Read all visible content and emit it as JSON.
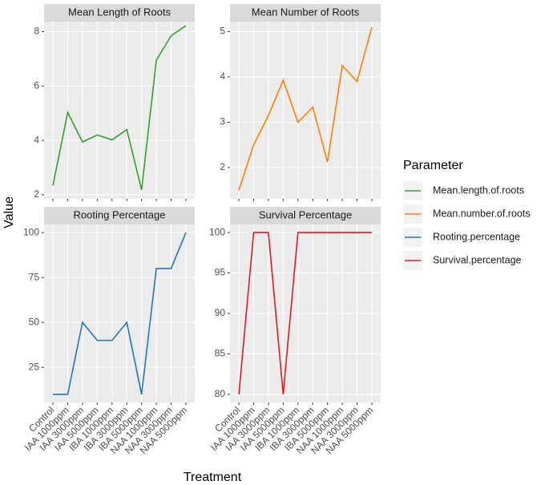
{
  "chart_data": {
    "type": "line",
    "x_label": "Treatment",
    "y_label": "Value",
    "legend_title": "Parameter",
    "categories": [
      "Control",
      "IAA 1000ppm",
      "IAA 3000ppm",
      "IAA 5000ppm",
      "IBA 1000ppm",
      "IBA 3000ppm",
      "IBA 5000ppm",
      "NAA 1000ppm",
      "NAA 3000ppm",
      "NAA 5000ppm"
    ],
    "panels": [
      {
        "title": "Mean Length of Roots",
        "ylim": [
          1.85,
          8.37
        ],
        "yticks": [
          2,
          4,
          6,
          8
        ],
        "series": [
          {
            "name": "Mean.length.of.roots",
            "color": "#33a02c",
            "values": [
              2.34,
              5.03,
              3.94,
              4.2,
              4.02,
              4.4,
              2.18,
              6.95,
              7.85,
              8.22
            ]
          }
        ]
      },
      {
        "title": "Mean Number of Roots",
        "ylim": [
          1.31,
          5.22
        ],
        "yticks": [
          2,
          3,
          4,
          5
        ],
        "series": [
          {
            "name": "Mean.number.of.roots",
            "color": "#ff7f00",
            "values": [
              1.5,
              2.5,
              3.15,
              3.93,
              3.0,
              3.33,
              2.12,
              4.25,
              3.9,
              5.1
            ]
          }
        ]
      },
      {
        "title": "Rooting Percentage",
        "ylim": [
          5.5,
          104.5
        ],
        "yticks": [
          25,
          50,
          75,
          100
        ],
        "series": [
          {
            "name": "Rooting.percentage",
            "color": "#1f78b4",
            "values": [
              10,
              10,
              50,
              40,
              40,
              50,
              10,
              80,
              80,
              100
            ]
          }
        ]
      },
      {
        "title": "Survival Percentage",
        "ylim": [
          79,
          101
        ],
        "yticks": [
          80,
          85,
          90,
          95,
          100
        ],
        "series": [
          {
            "name": "Survival.percentage",
            "color": "#e31a1c",
            "values": [
              80,
              100,
              100,
              80,
              100,
              100,
              100,
              100,
              100,
              100
            ]
          }
        ]
      }
    ]
  }
}
